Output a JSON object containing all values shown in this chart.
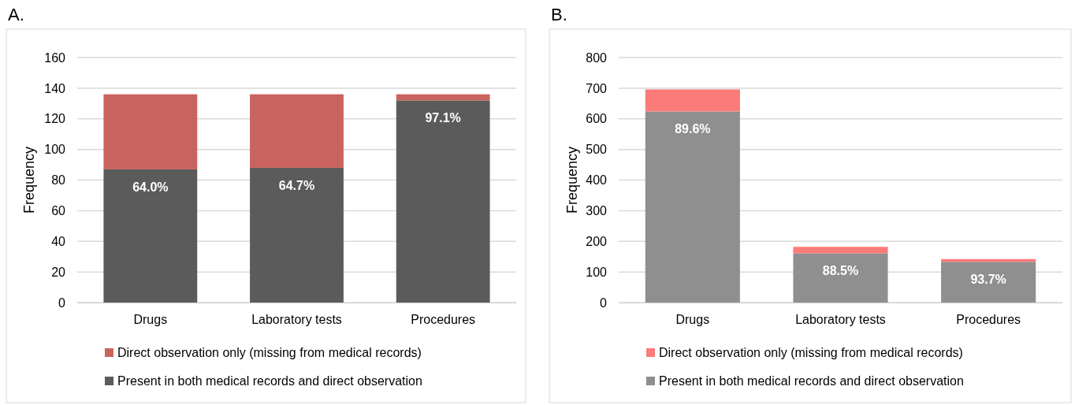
{
  "chart_data": [
    {
      "type": "bar",
      "title": "A.",
      "stacked": true,
      "ylabel": "Frequency",
      "categories": [
        "Drugs",
        "Laboratory tests",
        "Procedures"
      ],
      "ylim": [
        0,
        160
      ],
      "yticks": [
        0,
        20,
        40,
        60,
        80,
        100,
        120,
        140,
        160
      ],
      "grid": "y",
      "legend": "bottom",
      "series": [
        {
          "name": "Present in both medical records and direct observation",
          "color": "#5b5b5b",
          "values": [
            87,
            88,
            132
          ]
        },
        {
          "name": "Direct observation only (missing from medical records)",
          "color": "#c9635f",
          "values": [
            49,
            48,
            4
          ]
        }
      ],
      "annotations": [
        {
          "text": "64.0%",
          "x": "Drugs",
          "y": 87
        },
        {
          "text": "64.7%",
          "x": "Laboratory tests",
          "y": 88
        },
        {
          "text": "97.1%",
          "x": "Procedures",
          "y": 132
        }
      ]
    },
    {
      "type": "bar",
      "title": "B.",
      "stacked": true,
      "ylabel": "Frequency",
      "categories": [
        "Drugs",
        "Laboratory tests",
        "Procedures"
      ],
      "ylim": [
        0,
        800
      ],
      "yticks": [
        0,
        100,
        200,
        300,
        400,
        500,
        600,
        700,
        800
      ],
      "grid": "y",
      "legend": "bottom",
      "series": [
        {
          "name": "Present in both medical records and direct observation",
          "color": "#8f8f8f",
          "values": [
            624,
            161,
            133
          ]
        },
        {
          "name": "Direct observation only (missing from medical records)",
          "color": "#fb7b78",
          "values": [
            72,
            21,
            9
          ]
        }
      ],
      "annotations": [
        {
          "text": "89.6%",
          "x": "Drugs",
          "y": 624
        },
        {
          "text": "88.5%",
          "x": "Laboratory tests",
          "y": 161
        },
        {
          "text": "93.7%",
          "x": "Procedures",
          "y": 133
        }
      ]
    }
  ]
}
